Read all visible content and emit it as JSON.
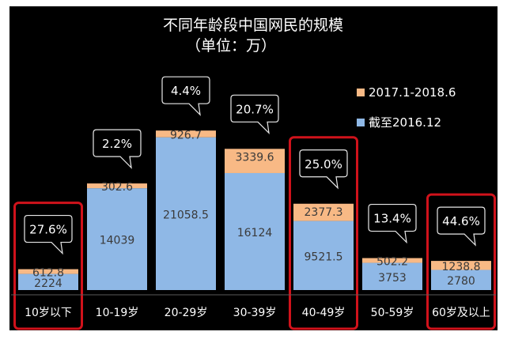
{
  "chart_data": {
    "type": "bar",
    "stacked": true,
    "title": "不同年龄段中国网民的规模",
    "subtitle": "（单位：万）",
    "categories": [
      "10岁以下",
      "10-19岁",
      "20-29岁",
      "30-39岁",
      "40-49岁",
      "50-59岁",
      "60岁及以上"
    ],
    "series": [
      {
        "name": "截至2016.12",
        "color": "#8fb8e6",
        "values": [
          2224,
          14039,
          21058.5,
          16124,
          9521.5,
          3753,
          2780
        ],
        "labels": [
          "2224",
          "14039",
          "21058.5",
          "16124",
          "9521.5",
          "3753",
          "2780"
        ]
      },
      {
        "name": "2017.1-2018.6",
        "color": "#f8b985",
        "values": [
          612.8,
          302.6,
          926.7,
          3339.6,
          2377.3,
          502.2,
          1238.8
        ],
        "labels": [
          "612.8",
          "302.6",
          "926.7",
          "3339.6",
          "2377.3",
          "502.2",
          "1238.8"
        ]
      }
    ],
    "growth_callouts": [
      "27.6%",
      "2.2%",
      "4.4%",
      "20.7%",
      "25.0%",
      "13.4%",
      "44.6%"
    ],
    "highlighted_categories": [
      "10岁以下",
      "40-49岁",
      "60岁及以上"
    ],
    "highlight_color": "#d0121b",
    "background_color": "#000000",
    "legend_position": "right",
    "grid": false
  }
}
